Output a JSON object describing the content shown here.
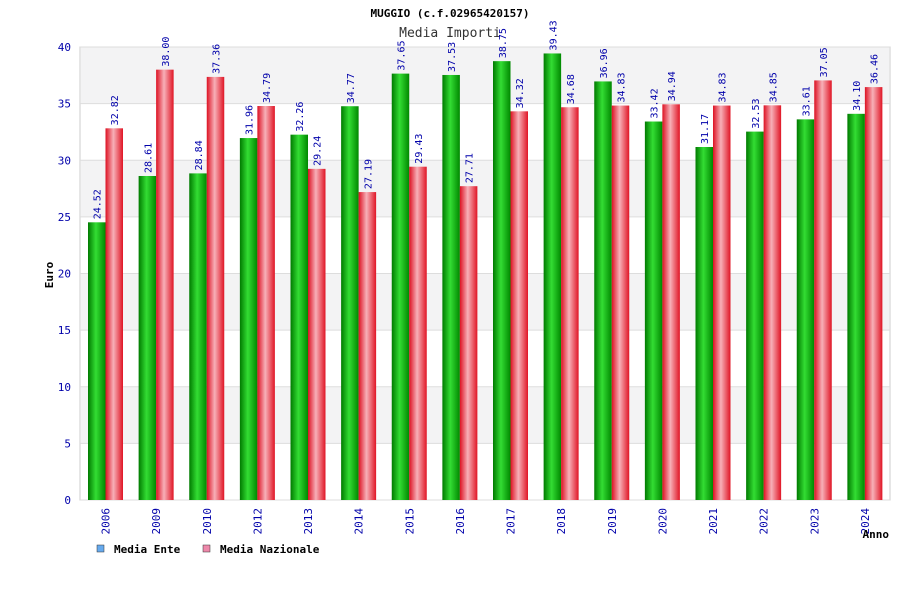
{
  "chart_data": {
    "type": "bar",
    "title": "MUGGIO (c.f.02965420157)",
    "subtitle": "Media Importi",
    "xlabel": "Anno",
    "ylabel": "Euro",
    "ylim": [
      0,
      40
    ],
    "yticks": [
      0,
      5,
      10,
      15,
      20,
      25,
      30,
      35,
      40
    ],
    "grid": true,
    "legend_position": "bottom-left",
    "categories": [
      "2006",
      "2009",
      "2010",
      "2012",
      "2013",
      "2014",
      "2015",
      "2016",
      "2017",
      "2018",
      "2019",
      "2020",
      "2021",
      "2022",
      "2023",
      "2024"
    ],
    "series": [
      {
        "name": "Media Ente",
        "color": "#00aa00",
        "legend_color": "#66aaee",
        "values": [
          24.52,
          28.61,
          28.84,
          31.96,
          32.26,
          34.77,
          37.65,
          37.53,
          38.75,
          39.43,
          36.96,
          33.42,
          31.17,
          32.53,
          33.61,
          34.1
        ],
        "labels": [
          "24.52",
          "28.61",
          "28.84",
          "31.96",
          "32.26",
          "34.77",
          "37.65",
          "37.53",
          "38.75",
          "39.43",
          "36.96",
          "33.42",
          "31.17",
          "32.53",
          "33.61",
          "34.10"
        ]
      },
      {
        "name": "Media Nazionale",
        "color": "#ee2233",
        "legend_color": "#ee88aa",
        "values": [
          32.82,
          38.0,
          37.36,
          34.79,
          29.24,
          27.19,
          29.43,
          27.71,
          34.32,
          34.68,
          34.83,
          34.94,
          34.83,
          34.85,
          37.05,
          36.46
        ],
        "labels": [
          "32.82",
          "38.00",
          "37.36",
          "34.79",
          "29.24",
          "27.19",
          "29.43",
          "27.71",
          "34.32",
          "34.68",
          "34.83",
          "34.94",
          "34.83",
          "34.85",
          "37.05",
          "36.46"
        ]
      }
    ]
  }
}
